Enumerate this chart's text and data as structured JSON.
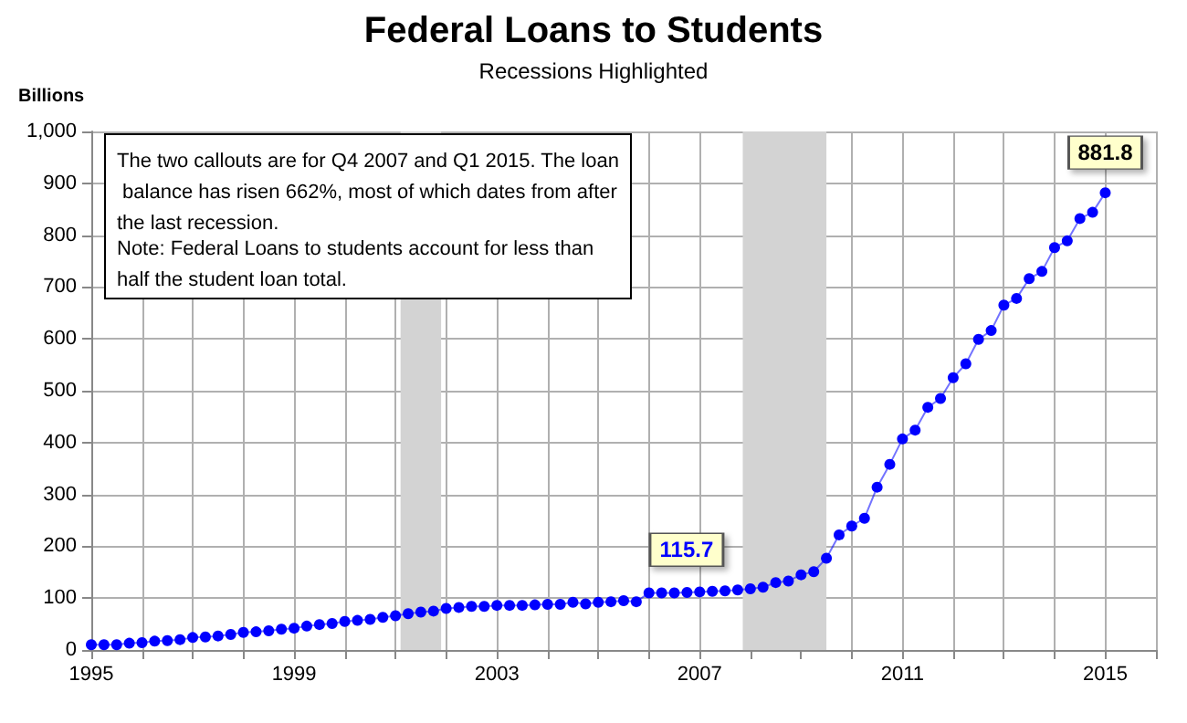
{
  "chart_data": {
    "type": "line",
    "title": "Federal Loans to Students",
    "subtitle": "Recessions Highlighted",
    "ylabel": "Billions",
    "x": [
      1995,
      1995.25,
      1995.5,
      1995.75,
      1996,
      1996.25,
      1996.5,
      1996.75,
      1997,
      1997.25,
      1997.5,
      1997.75,
      1998,
      1998.25,
      1998.5,
      1998.75,
      1999,
      1999.25,
      1999.5,
      1999.75,
      2000,
      2000.25,
      2000.5,
      2000.75,
      2001,
      2001.25,
      2001.5,
      2001.75,
      2002,
      2002.25,
      2002.5,
      2002.75,
      2003,
      2003.25,
      2003.5,
      2003.75,
      2004,
      2004.25,
      2004.5,
      2004.75,
      2005,
      2005.25,
      2005.5,
      2005.75,
      2006,
      2006.25,
      2006.5,
      2006.75,
      2007,
      2007.25,
      2007.5,
      2007.75,
      2008,
      2008.25,
      2008.5,
      2008.75,
      2009,
      2009.25,
      2009.5,
      2009.75,
      2010,
      2010.25,
      2010.5,
      2010.75,
      2011,
      2011.25,
      2011.5,
      2011.75,
      2012,
      2012.25,
      2012.5,
      2012.75,
      2013,
      2013.25,
      2013.5,
      2013.75,
      2014,
      2014.25,
      2014.5,
      2014.75,
      2015
    ],
    "series": [
      {
        "color": "#0000ff",
        "values": [
          10,
          10,
          10,
          13,
          14,
          17,
          18,
          20,
          24,
          25,
          27,
          30,
          34,
          35,
          37,
          40,
          42,
          46,
          49,
          51,
          55,
          57,
          59,
          63,
          66,
          70,
          73,
          75,
          80,
          82,
          84,
          84,
          86,
          86,
          86,
          87,
          88,
          88,
          92,
          89,
          92,
          93,
          95,
          93,
          110,
          110,
          110,
          111,
          112,
          113,
          114,
          115.7,
          118,
          121,
          130,
          133,
          145,
          151,
          177,
          222,
          239,
          254,
          314,
          358,
          407,
          424,
          468,
          485,
          525,
          552,
          599,
          616,
          665,
          678,
          716,
          730,
          776,
          789,
          832,
          844,
          881.8
        ]
      }
    ],
    "xlim": [
      1995,
      2016
    ],
    "xticks": [
      1995,
      {
        "value": 1996,
        "label": null
      },
      {
        "value": 1997,
        "label": null
      },
      {
        "value": 1998,
        "label": null
      },
      1999,
      {
        "value": 2000,
        "label": null
      },
      {
        "value": 2001,
        "label": null
      },
      {
        "value": 2002,
        "label": null
      },
      2003,
      {
        "value": 2004,
        "label": null
      },
      {
        "value": 2005,
        "label": null
      },
      {
        "value": 2006,
        "label": null
      },
      2007,
      {
        "value": 2008,
        "label": null
      },
      {
        "value": 2009,
        "label": null
      },
      {
        "value": 2010,
        "label": null
      },
      2011,
      {
        "value": 2012,
        "label": null
      },
      {
        "value": 2013,
        "label": null
      },
      {
        "value": 2014,
        "label": null
      },
      2015,
      {
        "value": 2016,
        "label": null
      }
    ],
    "ylim": [
      0,
      1000
    ],
    "yticks": [
      0,
      100,
      200,
      300,
      400,
      500,
      600,
      700,
      800,
      900,
      {
        "value": 1000,
        "label": "1,000"
      }
    ],
    "bands": [
      {
        "axis": "x",
        "from": 2001.1,
        "to": 2001.9,
        "color": "#d3d3d3"
      },
      {
        "axis": "x",
        "from": 2007.85,
        "to": 2009.5,
        "color": "#d3d3d3"
      }
    ],
    "annotations": [
      "The two callouts are for Q4 2007 and Q1 2015. The loan balance has risen 662%, most of which dates from after the last recession.",
      "Note: Federal Loans to students account for less than half the student loan total.",
      {
        "text": "115.7",
        "x": 2007.75,
        "y": 115.7
      },
      {
        "text": "881.8",
        "x": 2015,
        "y": 881.8
      }
    ],
    "grid": true,
    "marker": "circle",
    "line_style": "solid"
  }
}
